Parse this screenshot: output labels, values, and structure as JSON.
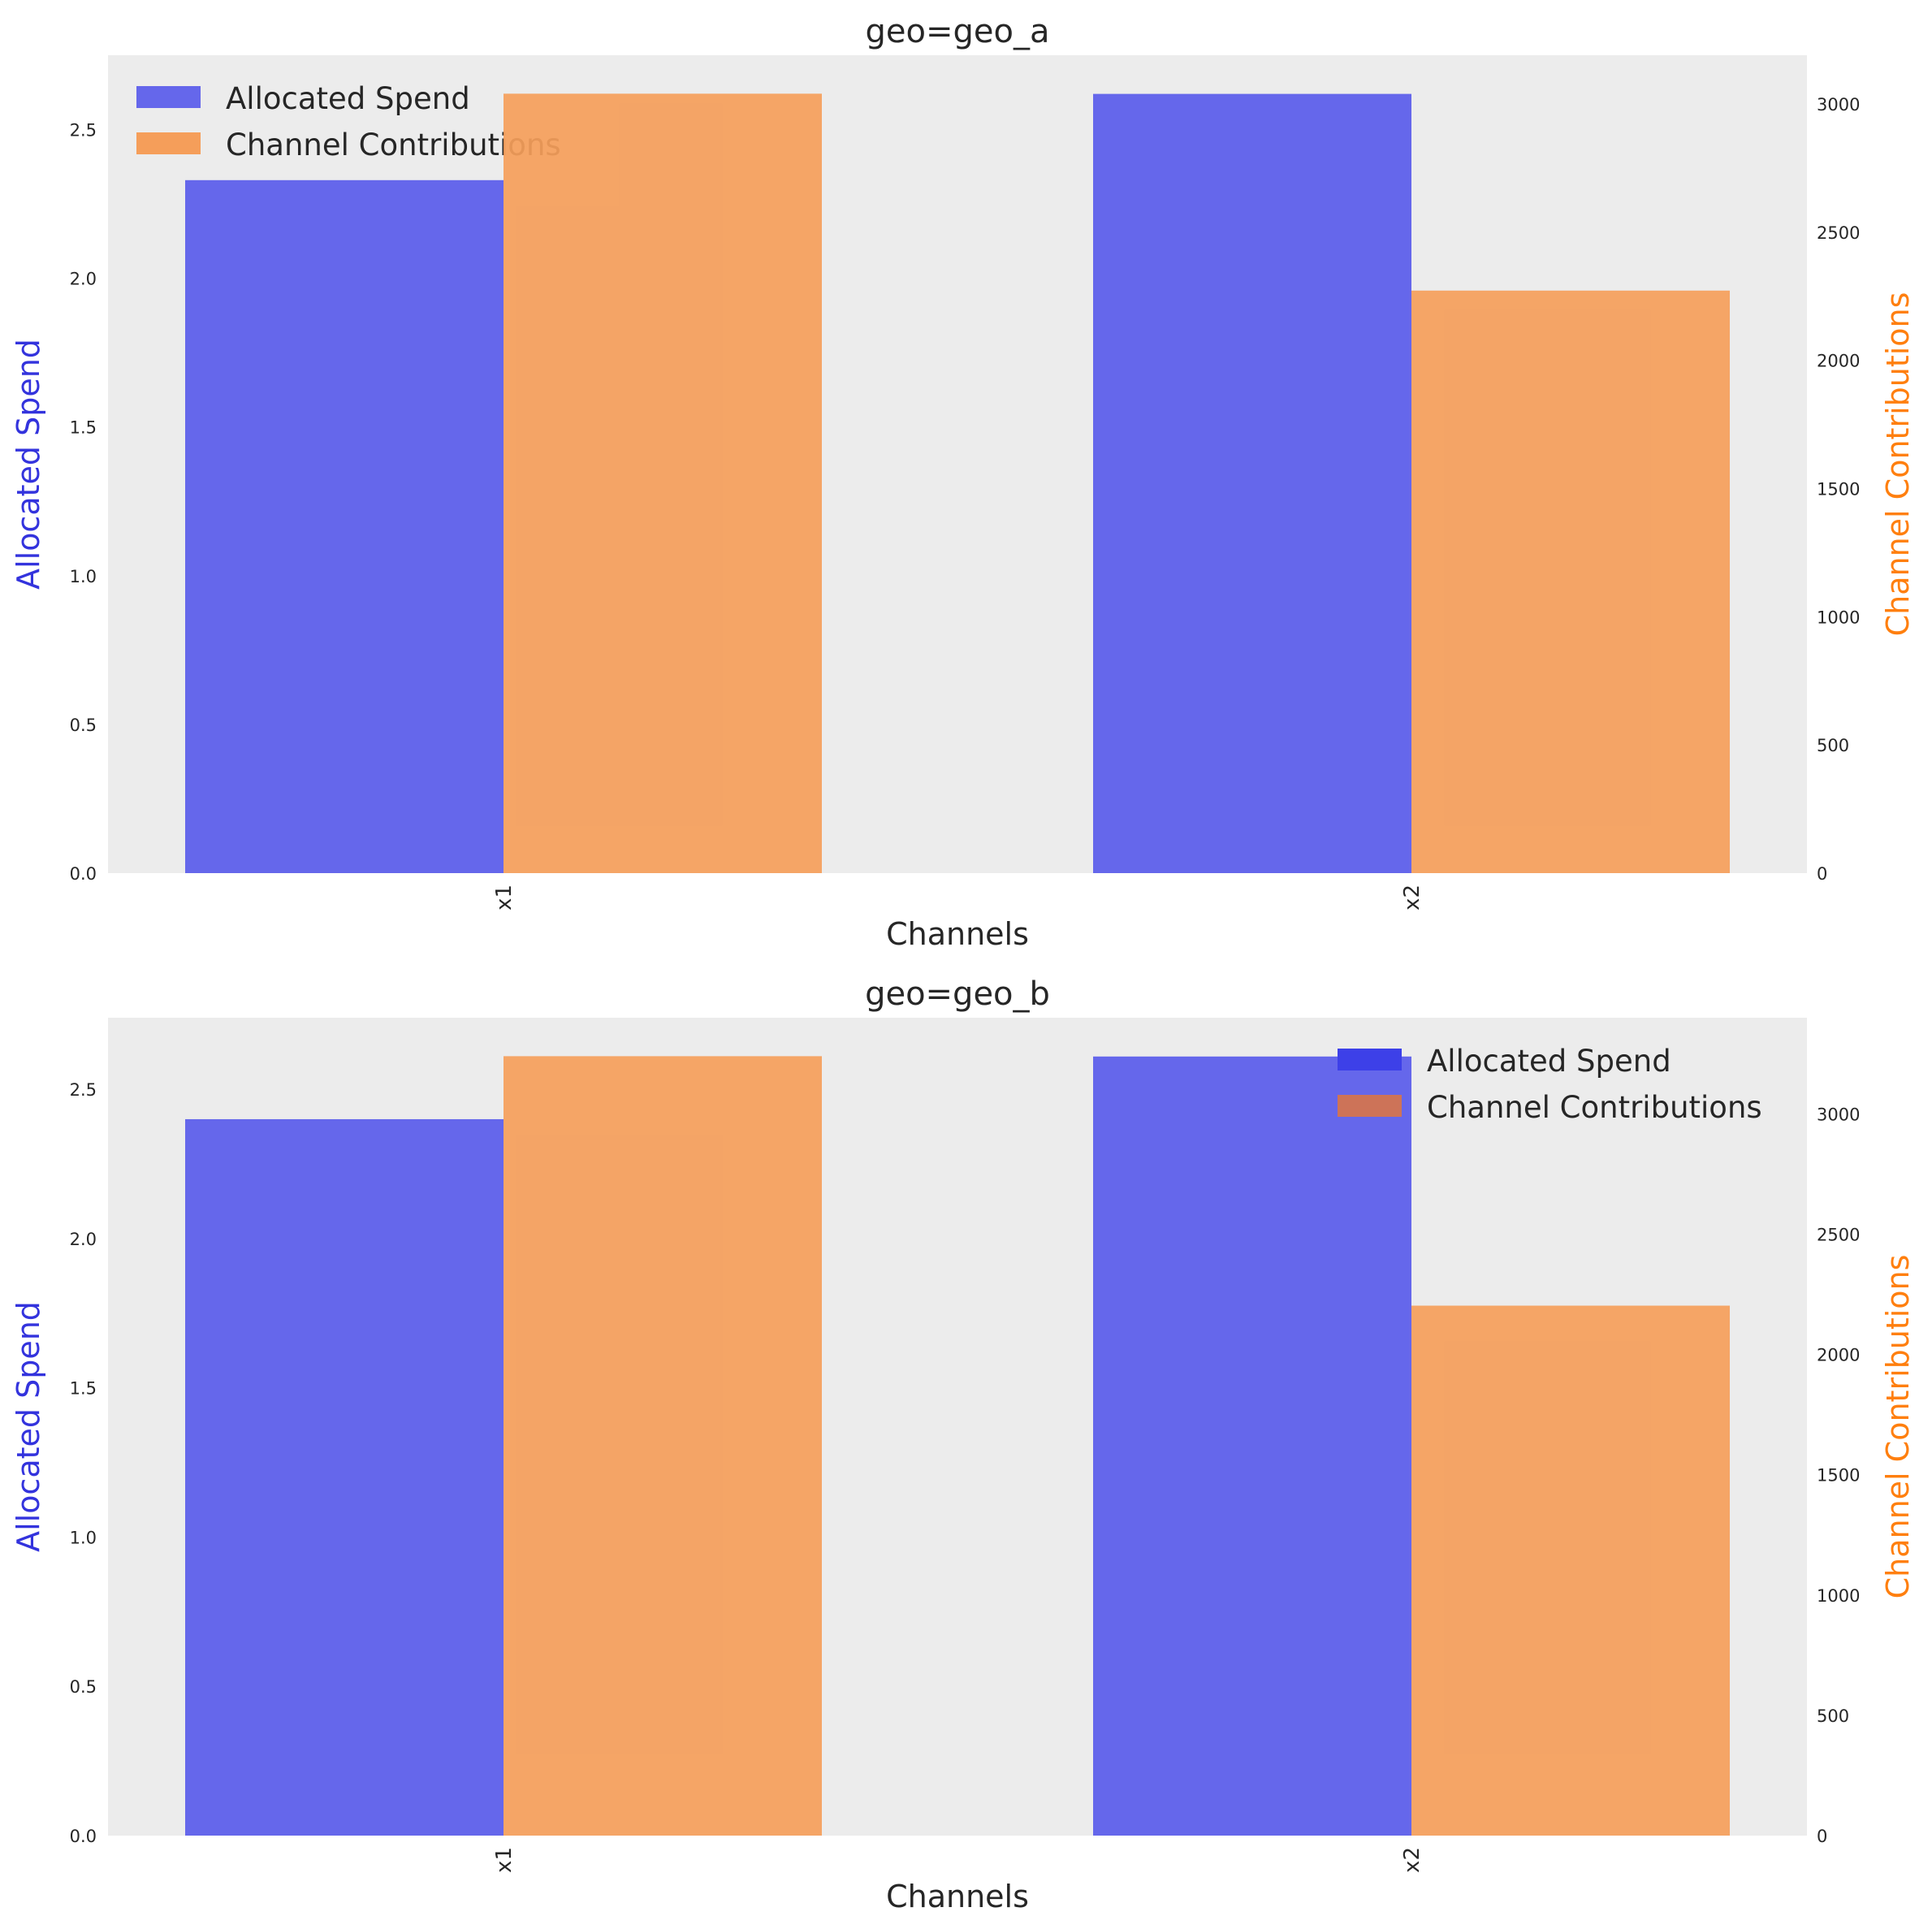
{
  "chart_data": [
    {
      "type": "bar",
      "title": "geo=geo_a",
      "xlabel": "Channels",
      "categories": [
        "x1",
        "x2"
      ],
      "y_left": {
        "label": "Allocated Spend",
        "label_color": "#3333dd",
        "lim": [
          0,
          2.75
        ],
        "ticks": [
          0.0,
          0.5,
          1.0,
          1.5,
          2.0,
          2.5
        ],
        "tick_labels": [
          "0.0",
          "0.5",
          "1.0",
          "1.5",
          "2.0",
          "2.5"
        ]
      },
      "y_right": {
        "label": "Channel Contributions",
        "label_color": "#ff7f0e",
        "lim": [
          0,
          3190
        ],
        "ticks": [
          0,
          500,
          1000,
          1500,
          2000,
          2500,
          3000
        ],
        "tick_labels": [
          "0",
          "500",
          "1000",
          "1500",
          "2000",
          "2500",
          "3000"
        ]
      },
      "series": [
        {
          "name": "Allocated Spend",
          "axis": "left",
          "color": "#6567eb",
          "values": [
            2.33,
            2.62
          ]
        },
        {
          "name": "Channel Contributions",
          "axis": "right",
          "color": "#f59e5a",
          "values": [
            3040,
            2272
          ]
        }
      ],
      "legend": {
        "placement": "top-left",
        "entries": [
          {
            "label": "Allocated Spend",
            "color": "#6567eb"
          },
          {
            "label": "Channel Contributions",
            "color": "#f59e5a"
          }
        ]
      },
      "grid": false
    },
    {
      "type": "bar",
      "title": "geo=geo_b",
      "xlabel": "Channels",
      "categories": [
        "x1",
        "x2"
      ],
      "y_left": {
        "label": "Allocated Spend",
        "label_color": "#3333dd",
        "lim": [
          0,
          2.74
        ],
        "ticks": [
          0.0,
          0.5,
          1.0,
          1.5,
          2.0,
          2.5
        ],
        "tick_labels": [
          "0.0",
          "0.5",
          "1.0",
          "1.5",
          "2.0",
          "2.5"
        ]
      },
      "y_right": {
        "label": "Channel Contributions",
        "label_color": "#ff7f0e",
        "lim": [
          0,
          3400
        ],
        "ticks": [
          0,
          500,
          1000,
          1500,
          2000,
          2500,
          3000
        ],
        "tick_labels": [
          "0",
          "500",
          "1000",
          "1500",
          "2000",
          "2500",
          "3000"
        ]
      },
      "series": [
        {
          "name": "Allocated Spend",
          "axis": "left",
          "color": "#6567eb",
          "values": [
            2.4,
            2.61
          ]
        },
        {
          "name": "Channel Contributions",
          "axis": "right",
          "color": "#f59e5a",
          "values": [
            3240,
            2203
          ]
        }
      ],
      "legend": {
        "placement": "top-right",
        "entries": [
          {
            "label": "Allocated Spend",
            "color": "#3d40e8"
          },
          {
            "label": "Channel Contributions",
            "color": "#cd7358"
          }
        ]
      },
      "grid": false
    }
  ],
  "colors": {
    "plot_background": "#ececec",
    "text": "#262626"
  }
}
